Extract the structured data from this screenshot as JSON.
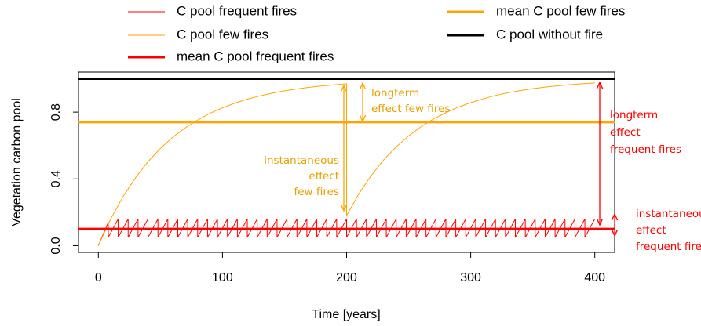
{
  "chart_data": {
    "type": "line",
    "xlabel": "Time [years]",
    "ylabel": "Vegetation carbon pool",
    "xlim": [
      -16,
      416
    ],
    "ylim": [
      -0.04,
      1.04
    ],
    "xticks": [
      0,
      100,
      200,
      300,
      400
    ],
    "yticks": [
      {
        "value": 0,
        "label": "0.0"
      },
      {
        "value": 0.4,
        "label": "0.4"
      },
      {
        "value": 0.8,
        "label": "0.8"
      }
    ],
    "series": [
      {
        "name": "C pool frequent fires",
        "color": "#ff0000",
        "lwd": 1,
        "x": [
          0,
          8,
          8,
          16,
          16,
          24,
          24,
          32,
          32,
          40,
          40,
          48,
          48,
          56,
          56,
          64,
          64,
          72,
          72,
          80,
          80,
          88,
          88,
          96,
          96,
          104,
          104,
          112,
          112,
          120,
          120,
          128,
          128,
          136,
          136,
          144,
          144,
          152,
          152,
          160,
          160,
          168,
          168,
          176,
          176,
          184,
          184,
          192,
          192,
          200,
          200,
          208,
          208,
          216,
          216,
          224,
          224,
          232,
          232,
          240,
          240,
          248,
          248,
          256,
          256,
          264,
          264,
          272,
          272,
          280,
          280,
          288,
          288,
          296,
          296,
          304,
          304,
          312,
          312,
          320,
          320,
          328,
          328,
          336,
          336,
          344,
          344,
          352,
          352,
          360,
          360,
          368,
          368,
          376,
          376,
          384,
          384,
          392,
          392,
          400
        ],
        "values": [
          0,
          0.14,
          0.05,
          0.16,
          0.05,
          0.16,
          0.05,
          0.16,
          0.05,
          0.16,
          0.05,
          0.16,
          0.05,
          0.16,
          0.05,
          0.16,
          0.05,
          0.16,
          0.05,
          0.16,
          0.05,
          0.16,
          0.05,
          0.16,
          0.05,
          0.16,
          0.05,
          0.16,
          0.05,
          0.16,
          0.05,
          0.16,
          0.05,
          0.16,
          0.05,
          0.16,
          0.05,
          0.16,
          0.05,
          0.16,
          0.05,
          0.16,
          0.05,
          0.16,
          0.05,
          0.16,
          0.05,
          0.16,
          0.05,
          0.16,
          0.05,
          0.16,
          0.05,
          0.16,
          0.05,
          0.16,
          0.05,
          0.16,
          0.05,
          0.16,
          0.05,
          0.16,
          0.05,
          0.16,
          0.05,
          0.16,
          0.05,
          0.16,
          0.05,
          0.16,
          0.05,
          0.16,
          0.05,
          0.16,
          0.05,
          0.16,
          0.05,
          0.16,
          0.05,
          0.16,
          0.05,
          0.16,
          0.05,
          0.16,
          0.05,
          0.16,
          0.05,
          0.16,
          0.05,
          0.16,
          0.05,
          0.16,
          0.05,
          0.16,
          0.05,
          0.16,
          0.05,
          0.16,
          0.05,
          0.16
        ]
      },
      {
        "name": "C pool few fires",
        "color": "#ffa500",
        "lwd": 1,
        "x": [
          0,
          10,
          20,
          30,
          40,
          50,
          60,
          70,
          80,
          90,
          100,
          110,
          120,
          130,
          140,
          150,
          160,
          170,
          180,
          190,
          200,
          200,
          210,
          220,
          230,
          240,
          250,
          260,
          270,
          280,
          290,
          300,
          310,
          320,
          330,
          340,
          350,
          360,
          370,
          380,
          390,
          400
        ],
        "values": [
          0,
          0.161,
          0.295,
          0.408,
          0.503,
          0.583,
          0.65,
          0.706,
          0.753,
          0.793,
          0.826,
          0.854,
          0.878,
          0.897,
          0.914,
          0.928,
          0.939,
          0.949,
          0.957,
          0.964,
          0.97,
          0.18,
          0.312,
          0.422,
          0.515,
          0.592,
          0.658,
          0.713,
          0.759,
          0.797,
          0.83,
          0.857,
          0.88,
          0.9,
          0.916,
          0.929,
          0.941,
          0.95,
          0.958,
          0.965,
          0.97,
          0.975
        ]
      },
      {
        "name": "mean C pool frequent fires",
        "color": "#ff0000",
        "lwd": 3,
        "value": 0.1
      },
      {
        "name": "mean C pool few fires",
        "color": "#ffa500",
        "lwd": 3,
        "value": 0.74
      },
      {
        "name": "C pool without fire",
        "color": "#000000",
        "lwd": 3,
        "value": 1.0
      }
    ],
    "annotations": [
      {
        "lines": [
          "longterm",
          "effect few fires"
        ],
        "color": "#e6a000"
      },
      {
        "lines": [
          "instantaneous",
          "effect",
          "few fires"
        ],
        "color": "#e6a000"
      },
      {
        "lines": [
          "longterm",
          "effect",
          "frequent fires"
        ],
        "color": "#ff0000"
      },
      {
        "lines": [
          "instantaneous",
          "effect",
          "frequent fires"
        ],
        "color": "#ff0000"
      }
    ]
  }
}
